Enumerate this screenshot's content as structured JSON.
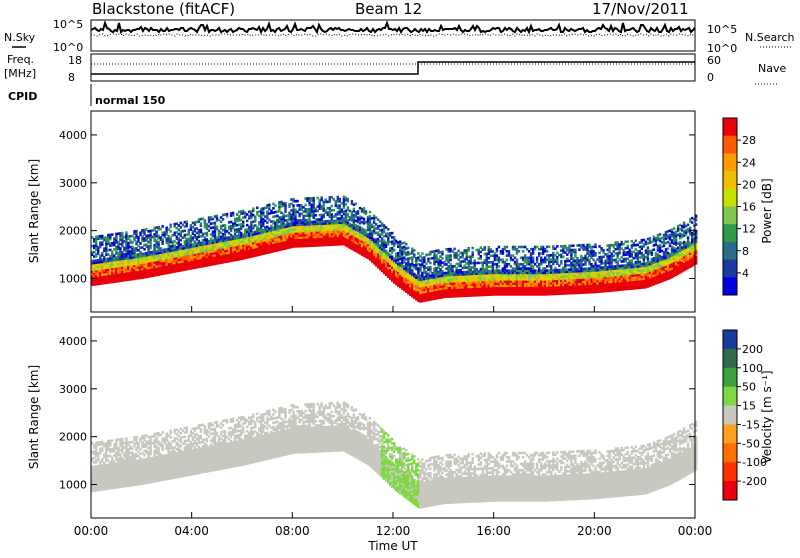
{
  "header": {
    "station": "Blackstone (fitACF)",
    "beam": "Beam 12",
    "date": "17/Nov/2011"
  },
  "top_panels": {
    "nsky_label": "N.Sky",
    "nsearch_label": "N.Search",
    "noise_ticks_left": [
      "10^5",
      "10^0"
    ],
    "noise_ticks_right": [
      "10^5",
      "10^0"
    ],
    "freq_label_line1": "Freq.",
    "freq_label_line2": "[MHz]",
    "freq_ticks": [
      "18",
      "8"
    ],
    "nave_label": "Nave",
    "nave_ticks": [
      "60",
      "0"
    ],
    "cpid_label": "CPID",
    "cpid_value": "normal 150"
  },
  "colorbars": {
    "power": {
      "label": "Power [dB]",
      "ticks": [
        "28",
        "24",
        "20",
        "16",
        "12",
        "8",
        "4"
      ],
      "colors": [
        "#e8000b",
        "#ff5a00",
        "#ff9a00",
        "#f0c000",
        "#c8e000",
        "#7ec850",
        "#2f9a4a",
        "#2a6a8a",
        "#1a3aa0",
        "#0000e0"
      ]
    },
    "velocity": {
      "label": "Velocity [m s⁻¹]",
      "ticks": [
        "200",
        "100",
        "50",
        "15",
        "-15",
        "-50",
        "-100",
        "-200"
      ],
      "colors": [
        "#1a3aa0",
        "#2f6a4a",
        "#3aa040",
        "#7ed840",
        "#c8c8c0",
        "#ffa020",
        "#ff7000",
        "#ff3000",
        "#e8000b"
      ]
    }
  },
  "chart_data": [
    {
      "type": "heatmap",
      "panel": "power",
      "ylabel": "Slant Range [km]",
      "ylim": [
        300,
        4500
      ],
      "yticks": [
        1000,
        2000,
        3000,
        4000
      ],
      "xlim": [
        0,
        24
      ],
      "backscatter_centre_km": {
        "x": [
          0,
          2,
          4,
          6,
          8,
          10,
          11,
          12,
          13,
          14,
          16,
          18,
          20,
          22,
          23,
          24
        ],
        "y": [
          1150,
          1300,
          1500,
          1700,
          1950,
          2000,
          1700,
          1200,
          800,
          900,
          950,
          950,
          1000,
          1100,
          1300,
          1600
        ]
      }
    },
    {
      "type": "heatmap",
      "panel": "velocity",
      "ylabel": "Slant Range [km]",
      "ylim": [
        300,
        4500
      ],
      "yticks": [
        1000,
        2000,
        3000,
        4000
      ],
      "xlim": [
        0,
        24
      ],
      "xlabel": "Time UT",
      "xticks": [
        "00:00",
        "04:00",
        "08:00",
        "12:00",
        "16:00",
        "20:00",
        "00:00"
      ]
    }
  ]
}
